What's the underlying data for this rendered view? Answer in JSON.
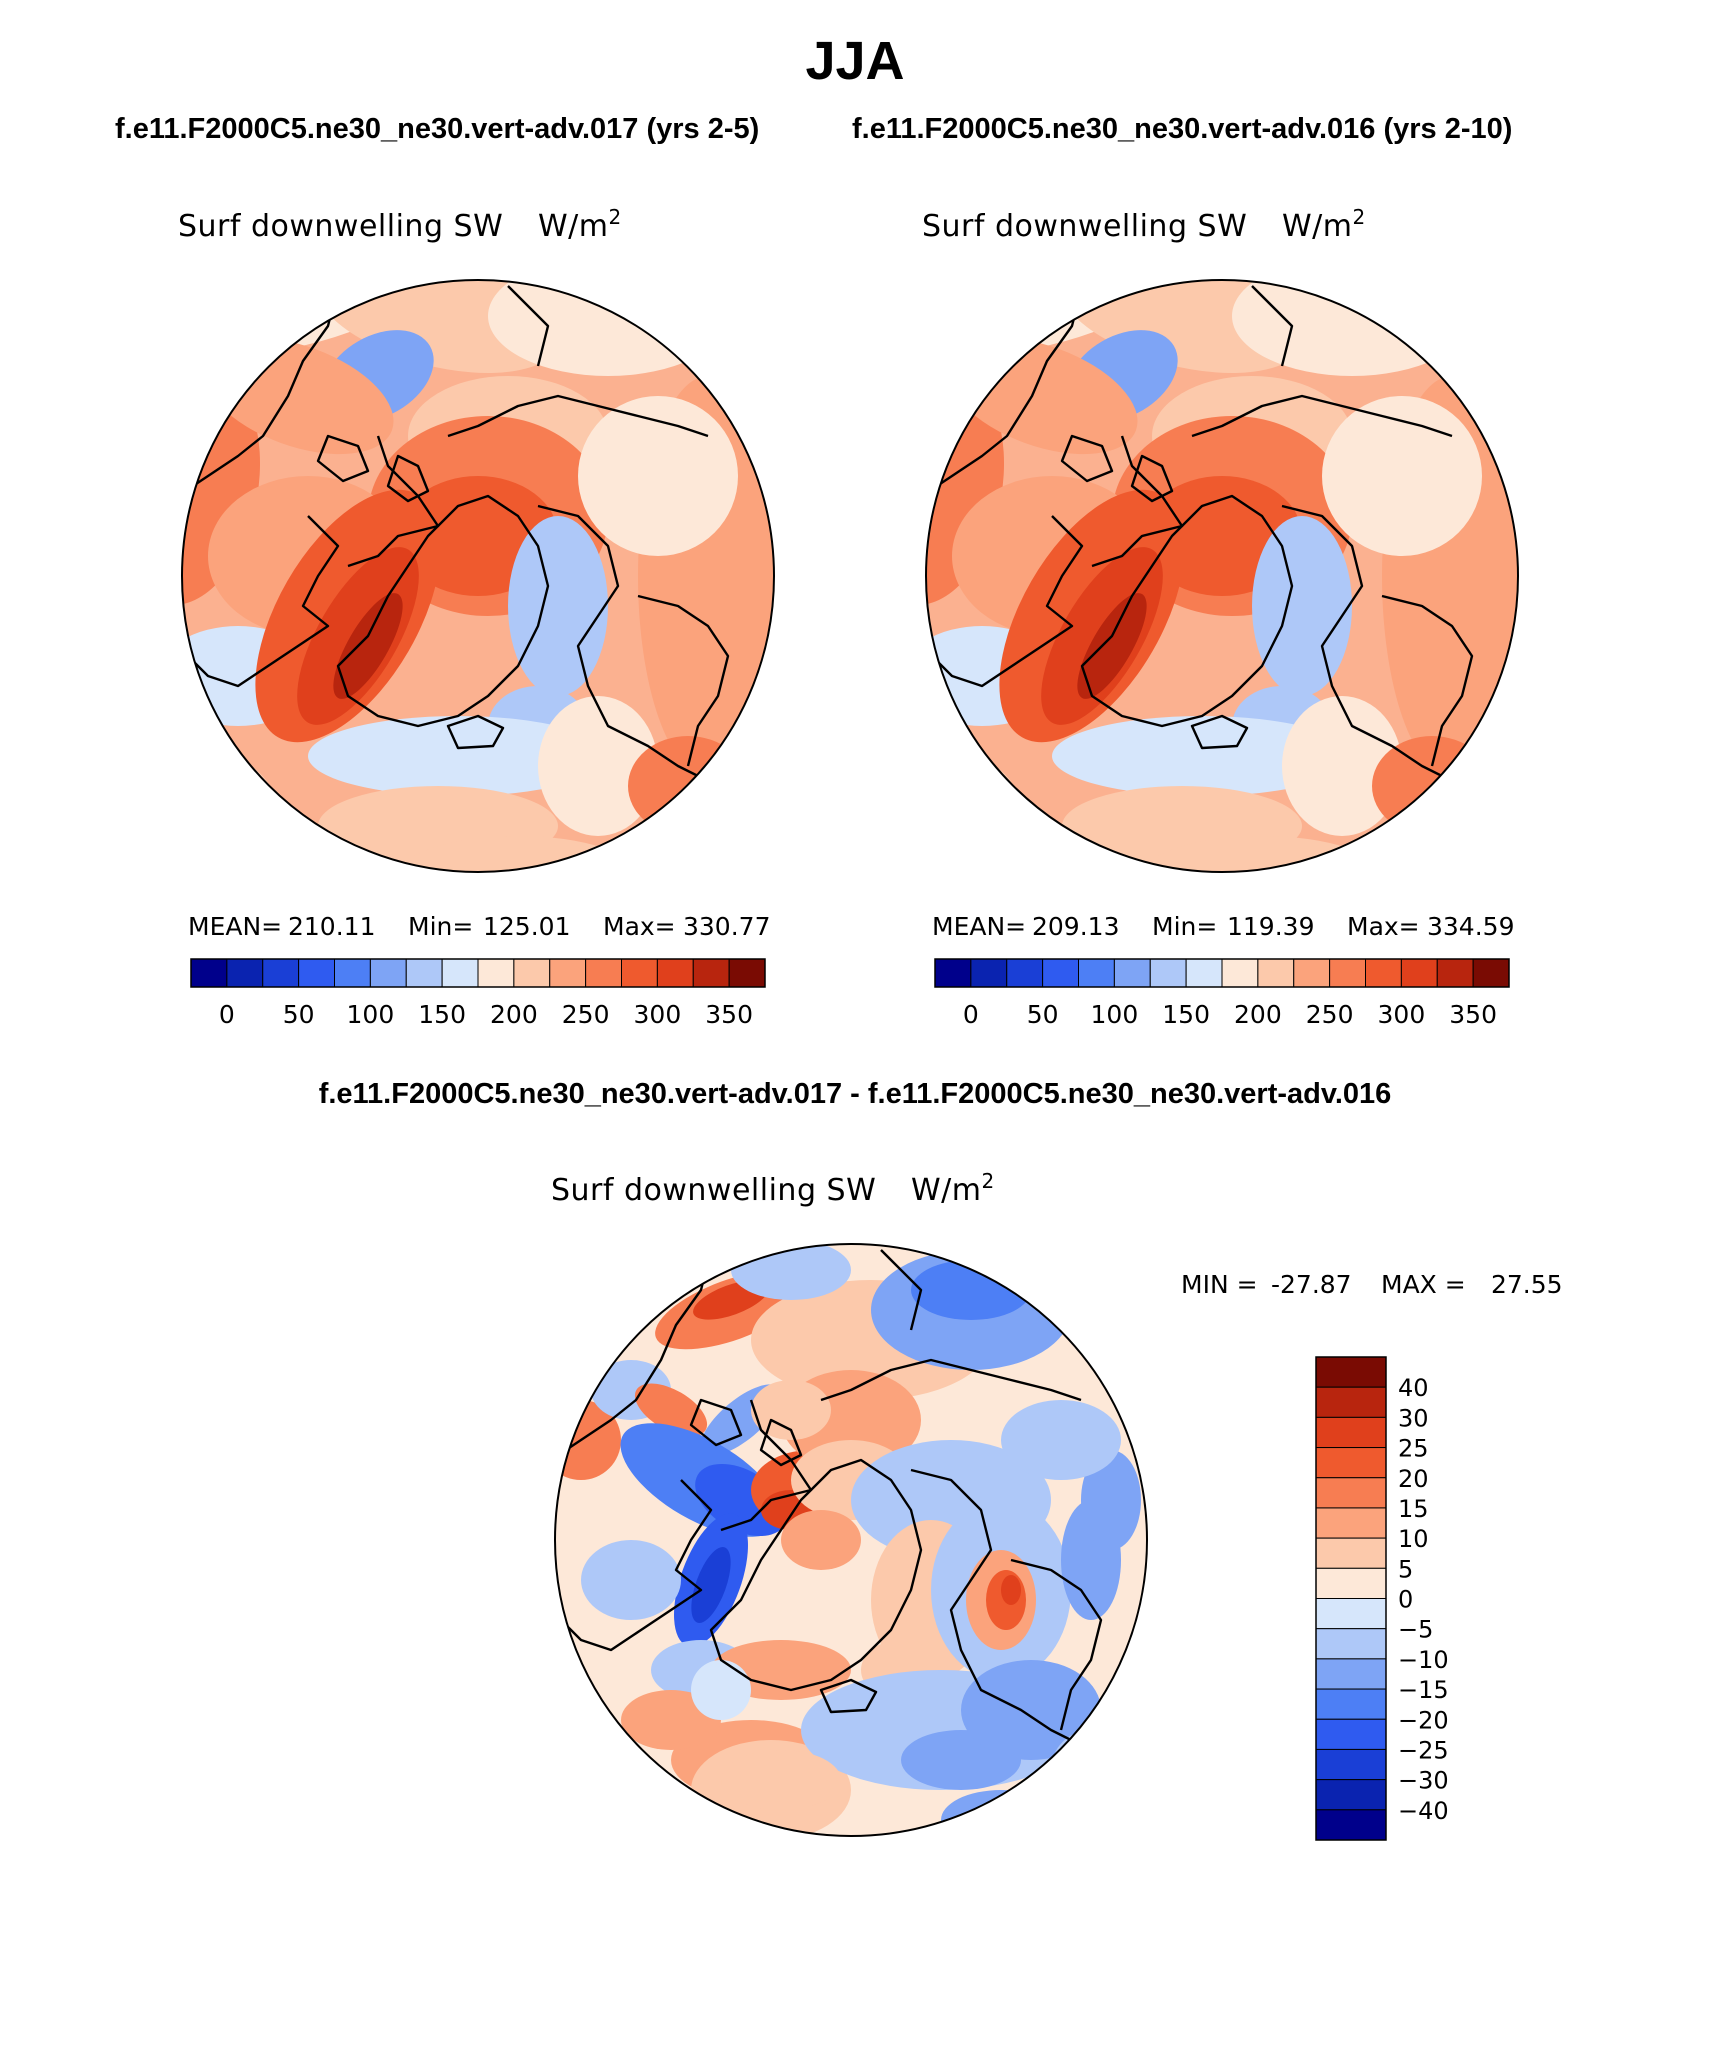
{
  "title": "JJA",
  "case_titles": [
    "f.e11.F2000C5.ne30_ne30.vert-adv.017 (yrs 2-5)",
    "f.e11.F2000C5.ne30_ne30.vert-adv.016 (yrs 2-10)"
  ],
  "diff_title": "f.e11.F2000C5.ne30_ne30.vert-adv.017 - f.e11.F2000C5.ne30_ne30.vert-adv.016",
  "chart_data": [
    {
      "type": "heatmap",
      "projection": "north polar stereographic",
      "title": "Surf downwelling SW",
      "units_base": "W/m",
      "units_exp": "2",
      "stats": {
        "mean_label": "MEAN=",
        "mean": "210.11",
        "min_label": "Min=",
        "min": "125.01",
        "max_label": "Max=",
        "max": "330.77"
      },
      "colorbar_ticks": [
        "0",
        "50",
        "100",
        "150",
        "200",
        "250",
        "300",
        "350"
      ],
      "colorbar_colors": [
        "#00008b",
        "#0a23b0",
        "#1a3fd6",
        "#2f5bf0",
        "#4d7ff5",
        "#7ea4f5",
        "#aec8f8",
        "#d6e6fb",
        "#fde8d8",
        "#fcc9ab",
        "#fba37c",
        "#f77d52",
        "#ef5a2e",
        "#e0401c",
        "#b8250e",
        "#7a0b03"
      ],
      "bg_color": "#fbb190"
    },
    {
      "type": "heatmap",
      "projection": "north polar stereographic",
      "title": "Surf downwelling SW",
      "units_base": "W/m",
      "units_exp": "2",
      "stats": {
        "mean_label": "MEAN=",
        "mean": "209.13",
        "min_label": "Min=",
        "min": "119.39",
        "max_label": "Max=",
        "max": "334.59"
      },
      "colorbar_ticks": [
        "0",
        "50",
        "100",
        "150",
        "200",
        "250",
        "300",
        "350"
      ],
      "colorbar_colors": [
        "#00008b",
        "#0a23b0",
        "#1a3fd6",
        "#2f5bf0",
        "#4d7ff5",
        "#7ea4f5",
        "#aec8f8",
        "#d6e6fb",
        "#fde8d8",
        "#fcc9ab",
        "#fba37c",
        "#f77d52",
        "#ef5a2e",
        "#e0401c",
        "#b8250e",
        "#7a0b03"
      ],
      "bg_color": "#fbb190"
    },
    {
      "type": "heatmap",
      "projection": "north polar stereographic",
      "title": "Surf downwelling SW",
      "units_base": "W/m",
      "units_exp": "2",
      "stats": {
        "min_label": "MIN =",
        "min": "-27.87",
        "max_label": "MAX =",
        "max": "27.55"
      },
      "colorbar_ticks": [
        "40",
        "30",
        "25",
        "20",
        "15",
        "10",
        "5",
        "0",
        "−5",
        "−10",
        "−15",
        "−20",
        "−25",
        "−30",
        "−40"
      ],
      "colorbar_colors": [
        "#7a0b03",
        "#b8250e",
        "#e0401c",
        "#ef5a2e",
        "#f77d52",
        "#fba37c",
        "#fcc9ab",
        "#fde8d8",
        "#d6e6fb",
        "#aec8f8",
        "#7ea4f5",
        "#4d7ff5",
        "#2f5bf0",
        "#1a3fd6",
        "#0a23b0",
        "#00008b"
      ],
      "bg_color": "#fde8d8"
    }
  ]
}
